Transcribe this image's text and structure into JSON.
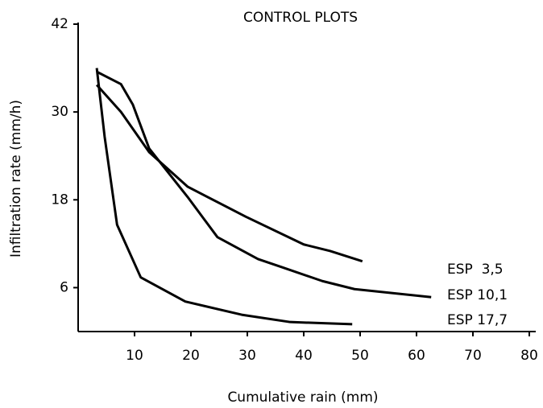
{
  "chart_data": {
    "type": "line",
    "title": "CONTROL PLOTS",
    "xlabel": "Cumulative rain (mm)",
    "ylabel": "Infiltration rate (mm/h)",
    "xlim": [
      0,
      80
    ],
    "ylim": [
      0,
      42
    ],
    "xticks": [
      10,
      20,
      30,
      40,
      50,
      60,
      70,
      80
    ],
    "yticks": [
      6,
      18,
      30,
      42
    ],
    "series": [
      {
        "name": "ESP  3,5",
        "color": "#000000",
        "x": [
          3.3,
          7.6,
          12.6,
          19.4,
          29.7,
          40,
          44.7,
          50.4
        ],
        "values": [
          33.7,
          30,
          24.5,
          19.8,
          15.7,
          11.9,
          11,
          9.6
        ]
      },
      {
        "name": "ESP 10,1",
        "color": "#000000",
        "x": [
          3.3,
          7.6,
          9.7,
          12.6,
          19.4,
          24.7,
          31.9,
          36.1,
          43.3,
          49,
          62.6
        ],
        "values": [
          35.5,
          33.8,
          31,
          25,
          18.4,
          12.9,
          9.9,
          8.8,
          6.9,
          5.8,
          4.7
        ]
      },
      {
        "name": "ESP 17,7",
        "color": "#000000",
        "x": [
          3.3,
          4.7,
          6.9,
          11.1,
          19,
          29,
          37.6,
          48.6
        ],
        "values": [
          36,
          26.6,
          14.6,
          7.4,
          4.1,
          2.3,
          1.3,
          1
        ]
      }
    ]
  }
}
